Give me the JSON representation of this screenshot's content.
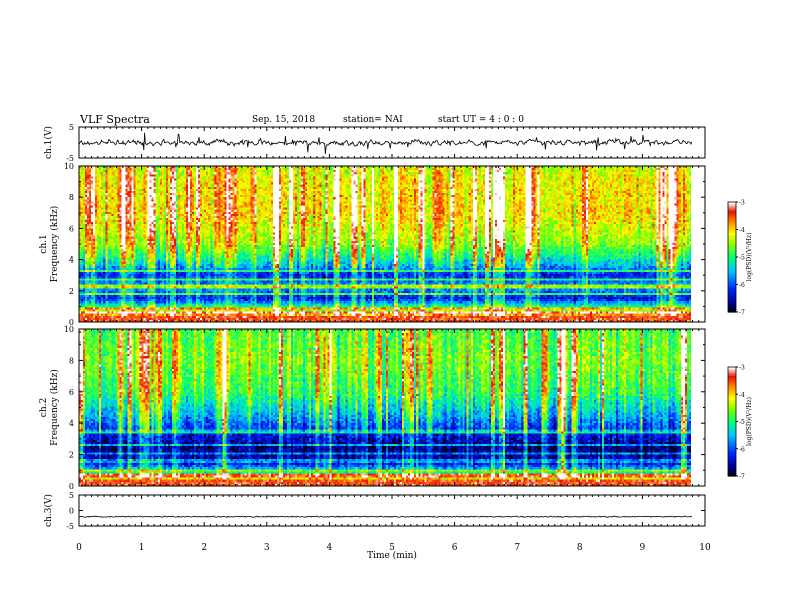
{
  "header": {
    "title": "VLF Spectra",
    "date": "Sep. 15, 2018",
    "station": "station= NAI",
    "start": "start  UT =  4 : 0  : 0"
  },
  "colors": {
    "background": "#ffffff",
    "axis": "#000000"
  },
  "chart_data": [
    {
      "type": "line",
      "panel": "ch.1 voltage",
      "ylabel": "ch.1(V)",
      "ylim": [
        -5,
        5
      ],
      "yticks": [
        "5",
        "-5"
      ],
      "xlim": [
        0,
        10
      ],
      "baseline": 0,
      "note": "noisy waveform centered near 0 V, amplitude about ±2 V, data ending near 9.8 min"
    },
    {
      "type": "heatmap",
      "panel": "ch.1 spectrogram",
      "ylabel": "ch.1 Frequency (kHz)",
      "ylim": [
        0,
        10
      ],
      "yticks": [
        "0",
        "2",
        "4",
        "6",
        "8",
        "10"
      ],
      "xlim": [
        0,
        10
      ],
      "colorbar": {
        "label": "log(PSD)(V²/Hz)",
        "range": [
          -7,
          -3
        ],
        "ticks": [
          "-3",
          "-4",
          "-5",
          "-6",
          "-7"
        ]
      },
      "level_profile": [
        {
          "f": 0.4,
          "level": -3.6
        },
        {
          "f": 1.5,
          "level": -6.3
        },
        {
          "f": 2.2,
          "level": -5.6
        },
        {
          "f": 3.0,
          "level": -6.2
        },
        {
          "f": 4.0,
          "level": -5.2
        },
        {
          "f": 5.0,
          "level": -4.5
        },
        {
          "f": 7.0,
          "level": -4.0
        },
        {
          "f": 9.0,
          "level": -4.1
        },
        {
          "f": 10.0,
          "level": -4.3
        }
      ],
      "data_end_min": 9.8
    },
    {
      "type": "heatmap",
      "panel": "ch.2 spectrogram",
      "ylabel": "ch.2 Frequency (kHz)",
      "ylim": [
        0,
        10
      ],
      "yticks": [
        "0",
        "2",
        "4",
        "6",
        "8",
        "10"
      ],
      "xlim": [
        0,
        10
      ],
      "colorbar": {
        "label": "log(PSD)(V²/Hz)",
        "range": [
          -7,
          -3
        ],
        "ticks": [
          "-3",
          "-4",
          "-5",
          "-6",
          "-7"
        ]
      },
      "level_profile": [
        {
          "f": 0.4,
          "level": -4.0
        },
        {
          "f": 1.5,
          "level": -6.5
        },
        {
          "f": 2.5,
          "level": -6.7
        },
        {
          "f": 3.5,
          "level": -6.2
        },
        {
          "f": 4.5,
          "level": -5.6
        },
        {
          "f": 6.0,
          "level": -4.9
        },
        {
          "f": 8.0,
          "level": -4.6
        },
        {
          "f": 10.0,
          "level": -4.8
        }
      ],
      "data_end_min": 9.8
    },
    {
      "type": "line",
      "panel": "ch.3 voltage",
      "ylabel": "ch.3(V)",
      "ylim": [
        -5,
        5
      ],
      "yticks": [
        "5",
        "0",
        "-5"
      ],
      "xlim": [
        0,
        10
      ],
      "baseline": -2,
      "xlabel": "Time (min)",
      "xticks": [
        "0",
        "1",
        "2",
        "3",
        "4",
        "5",
        "6",
        "7",
        "8",
        "9",
        "10"
      ]
    }
  ]
}
